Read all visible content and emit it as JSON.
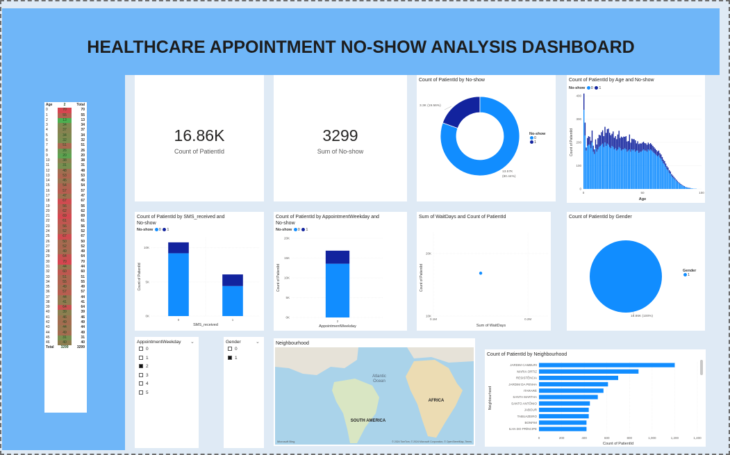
{
  "title": "HEALTHCARE APPOINTMENT NO-SHOW ANALYSIS DASHBOARD",
  "kpis": [
    {
      "value": "16.86K",
      "label": "Count of PatientId"
    },
    {
      "value": "3299",
      "label": "Sum of No-show"
    }
  ],
  "colors": {
    "series0": "#118dff",
    "series1": "#12239e",
    "header": "#6fb6f8",
    "heat_high": "#d64550",
    "heat_low": "#4caf50"
  },
  "age_table": {
    "headers": [
      "Age",
      "2",
      "Total"
    ],
    "rows": [
      [
        "0",
        "70",
        "70"
      ],
      [
        "1",
        "55",
        "55"
      ],
      [
        "2",
        "13",
        "13"
      ],
      [
        "3",
        "34",
        "34"
      ],
      [
        "4",
        "37",
        "37"
      ],
      [
        "5",
        "34",
        "34"
      ],
      [
        "6",
        "32",
        "32"
      ],
      [
        "7",
        "51",
        "51"
      ],
      [
        "8",
        "26",
        "26"
      ],
      [
        "9",
        "20",
        "20"
      ],
      [
        "10",
        "38",
        "38"
      ],
      [
        "11",
        "31",
        "31"
      ],
      [
        "12",
        "48",
        "48"
      ],
      [
        "13",
        "53",
        "53"
      ],
      [
        "14",
        "45",
        "45"
      ],
      [
        "15",
        "54",
        "54"
      ],
      [
        "16",
        "57",
        "57"
      ],
      [
        "17",
        "47",
        "47"
      ],
      [
        "18",
        "67",
        "67"
      ],
      [
        "19",
        "56",
        "56"
      ],
      [
        "20",
        "62",
        "62"
      ],
      [
        "21",
        "69",
        "69"
      ],
      [
        "22",
        "61",
        "61"
      ],
      [
        "23",
        "56",
        "56"
      ],
      [
        "24",
        "52",
        "52"
      ],
      [
        "25",
        "67",
        "67"
      ],
      [
        "26",
        "50",
        "50"
      ],
      [
        "27",
        "52",
        "52"
      ],
      [
        "28",
        "49",
        "49"
      ],
      [
        "29",
        "64",
        "64"
      ],
      [
        "30",
        "70",
        "70"
      ],
      [
        "31",
        "44",
        "44"
      ],
      [
        "32",
        "60",
        "60"
      ],
      [
        "33",
        "51",
        "51"
      ],
      [
        "34",
        "55",
        "55"
      ],
      [
        "35",
        "49",
        "49"
      ],
      [
        "36",
        "57",
        "57"
      ],
      [
        "37",
        "44",
        "44"
      ],
      [
        "38",
        "41",
        "41"
      ],
      [
        "39",
        "64",
        "64"
      ],
      [
        "40",
        "39",
        "39"
      ],
      [
        "41",
        "46",
        "46"
      ],
      [
        "42",
        "49",
        "49"
      ],
      [
        "43",
        "44",
        "44"
      ],
      [
        "44",
        "49",
        "49"
      ],
      [
        "45",
        "31",
        "31"
      ],
      [
        "46",
        "40",
        "40"
      ]
    ],
    "total": [
      "Total",
      "3299",
      "3299"
    ]
  },
  "donut": {
    "title": "Count of PatientId by No-show",
    "legend_title": "No-show",
    "legend_items": [
      "0",
      "1"
    ],
    "label_small": "3.3K (19.56%)",
    "label_big_1": "13.57K",
    "label_big_2": "(80.44%)"
  },
  "age_hist": {
    "title": "Count of PatientId by Age and No-show",
    "legend_title": "No-show",
    "legend_items": [
      "0",
      "1"
    ],
    "ylabel": "Count of PatientId",
    "xlabel": "Age",
    "yticks": [
      "400",
      "300",
      "200",
      "100",
      "0"
    ],
    "xticks": [
      "0",
      "50",
      "100"
    ]
  },
  "sms": {
    "title_1": "Count of PatientId by SMS_received and",
    "title_2": "No-show",
    "legend_title": "No-show",
    "legend_items": [
      "0",
      "1"
    ],
    "ylabel": "Count of PatientId",
    "xlabel": "SMS_received",
    "yticks": [
      "10K",
      "5K",
      "0K"
    ],
    "xticks": [
      "0",
      "1"
    ]
  },
  "weekday": {
    "title_1": "Count of PatientId by AppointmentWeekday and",
    "title_2": "No-show",
    "legend_title": "No-show",
    "legend_items": [
      "0",
      "1"
    ],
    "ylabel": "Count of PatientId",
    "xlabel": "AppointmentWeekday",
    "yticks": [
      "20K",
      "15K",
      "10K",
      "5K",
      "0K"
    ],
    "xticks": [
      "2"
    ]
  },
  "scatter": {
    "title": "Sum of WaitDays and Count of PatientId",
    "ylabel": "Count of PatientId",
    "xlabel": "Sum of WaitDays",
    "yticks": [
      "20K",
      "10K"
    ],
    "xticks": [
      "0.1M",
      "0.2M"
    ]
  },
  "gender": {
    "title": "Count of PatientId by Gender",
    "legend_title": "Gender",
    "legend_items": [
      "1"
    ],
    "label": "16.86K (100%)"
  },
  "slicer_weekday": {
    "title": "AppointmentWeekday",
    "options": [
      "0",
      "1",
      "2",
      "3",
      "4",
      "5"
    ],
    "selected": "2"
  },
  "slicer_gender": {
    "title": "Gender",
    "options": [
      "0",
      "1"
    ],
    "selected": "1"
  },
  "map": {
    "title": "Neighbourhood",
    "labels": {
      "ocean_1": "Atlantic",
      "ocean_2": "Ocean",
      "africa": "AFRICA",
      "south_america": "SOUTH AMERICA"
    },
    "footer": "© 2024 TomTom, © 2024 Microsoft Corporation, © OpenStreetMap, Terms",
    "bing": "Microsoft Bing"
  },
  "neigh": {
    "title": "Count of PatientId by Neighbourhood",
    "ylabel": "Neighbourhood",
    "xlabel": "Count of PatientId",
    "xticks": [
      "0",
      "200",
      "400",
      "600",
      "800",
      "1,000",
      "1,200",
      "1,400"
    ]
  },
  "chart_data": [
    {
      "type": "pie",
      "title": "Count of PatientId by No-show",
      "categories": [
        "0",
        "1"
      ],
      "values": [
        13570,
        3300
      ],
      "legend": "right"
    },
    {
      "type": "bar",
      "title": "Count of PatientId by Age and No-show",
      "xlabel": "Age",
      "ylabel": "Count of PatientId",
      "xlim": [
        0,
        100
      ],
      "ylim": [
        0,
        400
      ],
      "series": [
        {
          "name": "0",
          "values": [
            340,
            230,
            165,
            185,
            190,
            190,
            175,
            200,
            160,
            150,
            175,
            160,
            170,
            180,
            185,
            190,
            195,
            180,
            200,
            185,
            195,
            190,
            180,
            175,
            185,
            180,
            170,
            175,
            165,
            170,
            180,
            175,
            165,
            170,
            170,
            175,
            170,
            160,
            165,
            170,
            160,
            170,
            165,
            170,
            160,
            165,
            165,
            155,
            160,
            160,
            165,
            170,
            165,
            165,
            160,
            170,
            165,
            170,
            165,
            160,
            155,
            150,
            145,
            140,
            145,
            135,
            130,
            120,
            110,
            105,
            95,
            85,
            80,
            70,
            65,
            55,
            50,
            45,
            40,
            35,
            30,
            25,
            22,
            18,
            15,
            12,
            10,
            8,
            6,
            5,
            4,
            3,
            2,
            2,
            1,
            1,
            1,
            0,
            0,
            0,
            0
          ]
        },
        {
          "name": "1",
          "values": [
            70,
            55,
            13,
            34,
            37,
            34,
            32,
            51,
            26,
            20,
            38,
            31,
            48,
            53,
            45,
            54,
            57,
            47,
            67,
            56,
            62,
            69,
            61,
            56,
            52,
            67,
            50,
            52,
            49,
            64,
            70,
            44,
            60,
            51,
            55,
            49,
            57,
            44,
            41,
            64,
            39,
            46,
            49,
            44,
            49,
            31,
            40,
            38,
            36,
            35,
            34,
            33,
            32,
            31,
            30,
            29,
            28,
            27,
            26,
            25,
            24,
            23,
            22,
            21,
            20,
            19,
            18,
            17,
            16,
            15,
            14,
            13,
            12,
            11,
            10,
            9,
            8,
            7,
            6,
            5,
            4,
            4,
            3,
            3,
            2,
            2,
            2,
            1,
            1,
            1,
            1,
            1,
            0,
            0,
            0,
            0,
            0,
            0,
            0,
            0,
            0
          ]
        }
      ]
    },
    {
      "type": "bar",
      "title": "Count of PatientId by SMS_received and No-show",
      "categories": [
        "0",
        "1"
      ],
      "xlabel": "SMS_received",
      "ylabel": "Count of PatientId",
      "ylim": [
        0,
        11500
      ],
      "series": [
        {
          "name": "0",
          "values": [
            9200,
            4400
          ]
        },
        {
          "name": "1",
          "values": [
            1600,
            1700
          ]
        }
      ]
    },
    {
      "type": "bar",
      "title": "Count of PatientId by AppointmentWeekday and No-show",
      "categories": [
        "2"
      ],
      "xlabel": "AppointmentWeekday",
      "ylabel": "Count of PatientId",
      "ylim": [
        0,
        20000
      ],
      "series": [
        {
          "name": "0",
          "values": [
            13570
          ]
        },
        {
          "name": "1",
          "values": [
            3300
          ]
        }
      ]
    },
    {
      "type": "scatter",
      "title": "Sum of WaitDays and Count of PatientId",
      "xlabel": "Sum of WaitDays",
      "ylabel": "Count of PatientId",
      "xlim": [
        0.1,
        0.2
      ],
      "ylim": [
        10,
        20
      ],
      "x": [
        0.15
      ],
      "y": [
        16.86
      ]
    },
    {
      "type": "pie",
      "title": "Count of PatientId by Gender",
      "categories": [
        "1"
      ],
      "values": [
        16860
      ],
      "legend": "right"
    },
    {
      "type": "bar",
      "title": "Count of PatientId by Neighbourhood",
      "orientation": "horizontal",
      "xlabel": "Count of PatientId",
      "ylabel": "Neighbourhood",
      "xlim": [
        0,
        1400
      ],
      "categories": [
        "JARDIM CAMBURI",
        "MARIA ORTIZ",
        "RESISTÊNCIA",
        "JARDIM DA PENHA",
        "ITARARÉ",
        "SANTA MARTHA",
        "SANTO ANTÔNIO",
        "JABOUR",
        "TABUAZEIRO",
        "BONFIM",
        "ILHA DO PRÍNCIPE"
      ],
      "values": [
        1200,
        880,
        700,
        610,
        570,
        520,
        450,
        440,
        440,
        420,
        420
      ]
    }
  ]
}
